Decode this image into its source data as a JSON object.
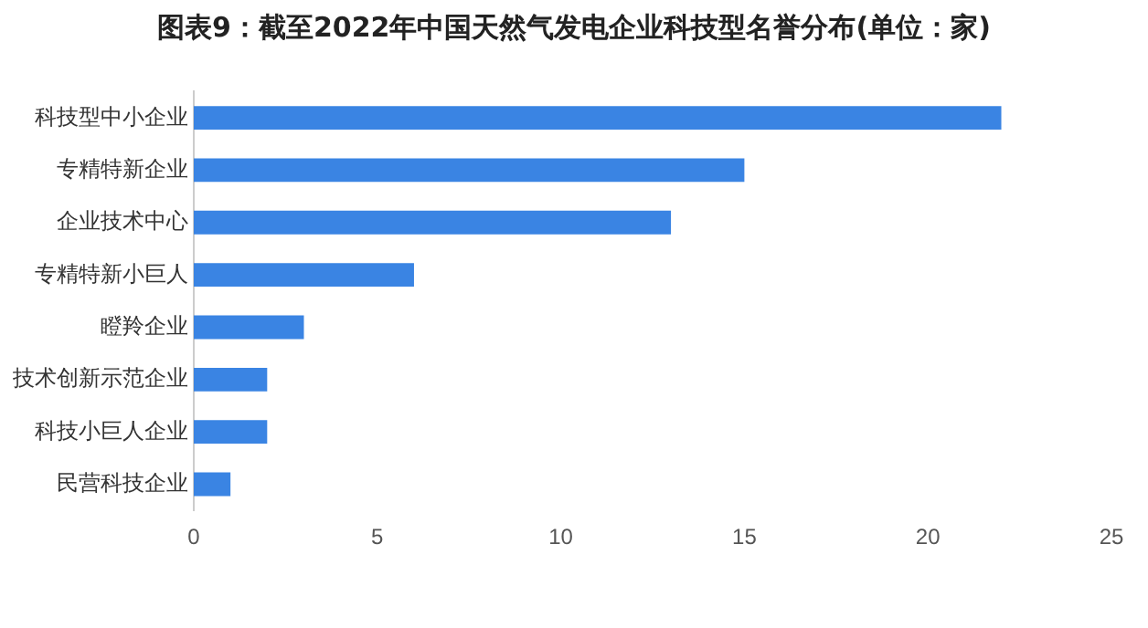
{
  "chart_data": {
    "type": "bar",
    "orientation": "horizontal",
    "title": "图表9：截至2022年中国天然气发电企业科技型名誉分布(单位：家)",
    "categories": [
      "科技型中小企业",
      "专精特新企业",
      "企业技术中心",
      "专精特新小巨人",
      "瞪羚企业",
      "技术创新示范企业",
      "科技小巨人企业",
      "民营科技企业"
    ],
    "values": [
      22,
      15,
      13,
      6,
      3,
      2,
      2,
      1
    ],
    "color": "#3a84e3",
    "xlim": [
      0,
      25
    ],
    "xticks": [
      0,
      5,
      10,
      15,
      20,
      25
    ],
    "grid": false,
    "legend": false
  }
}
